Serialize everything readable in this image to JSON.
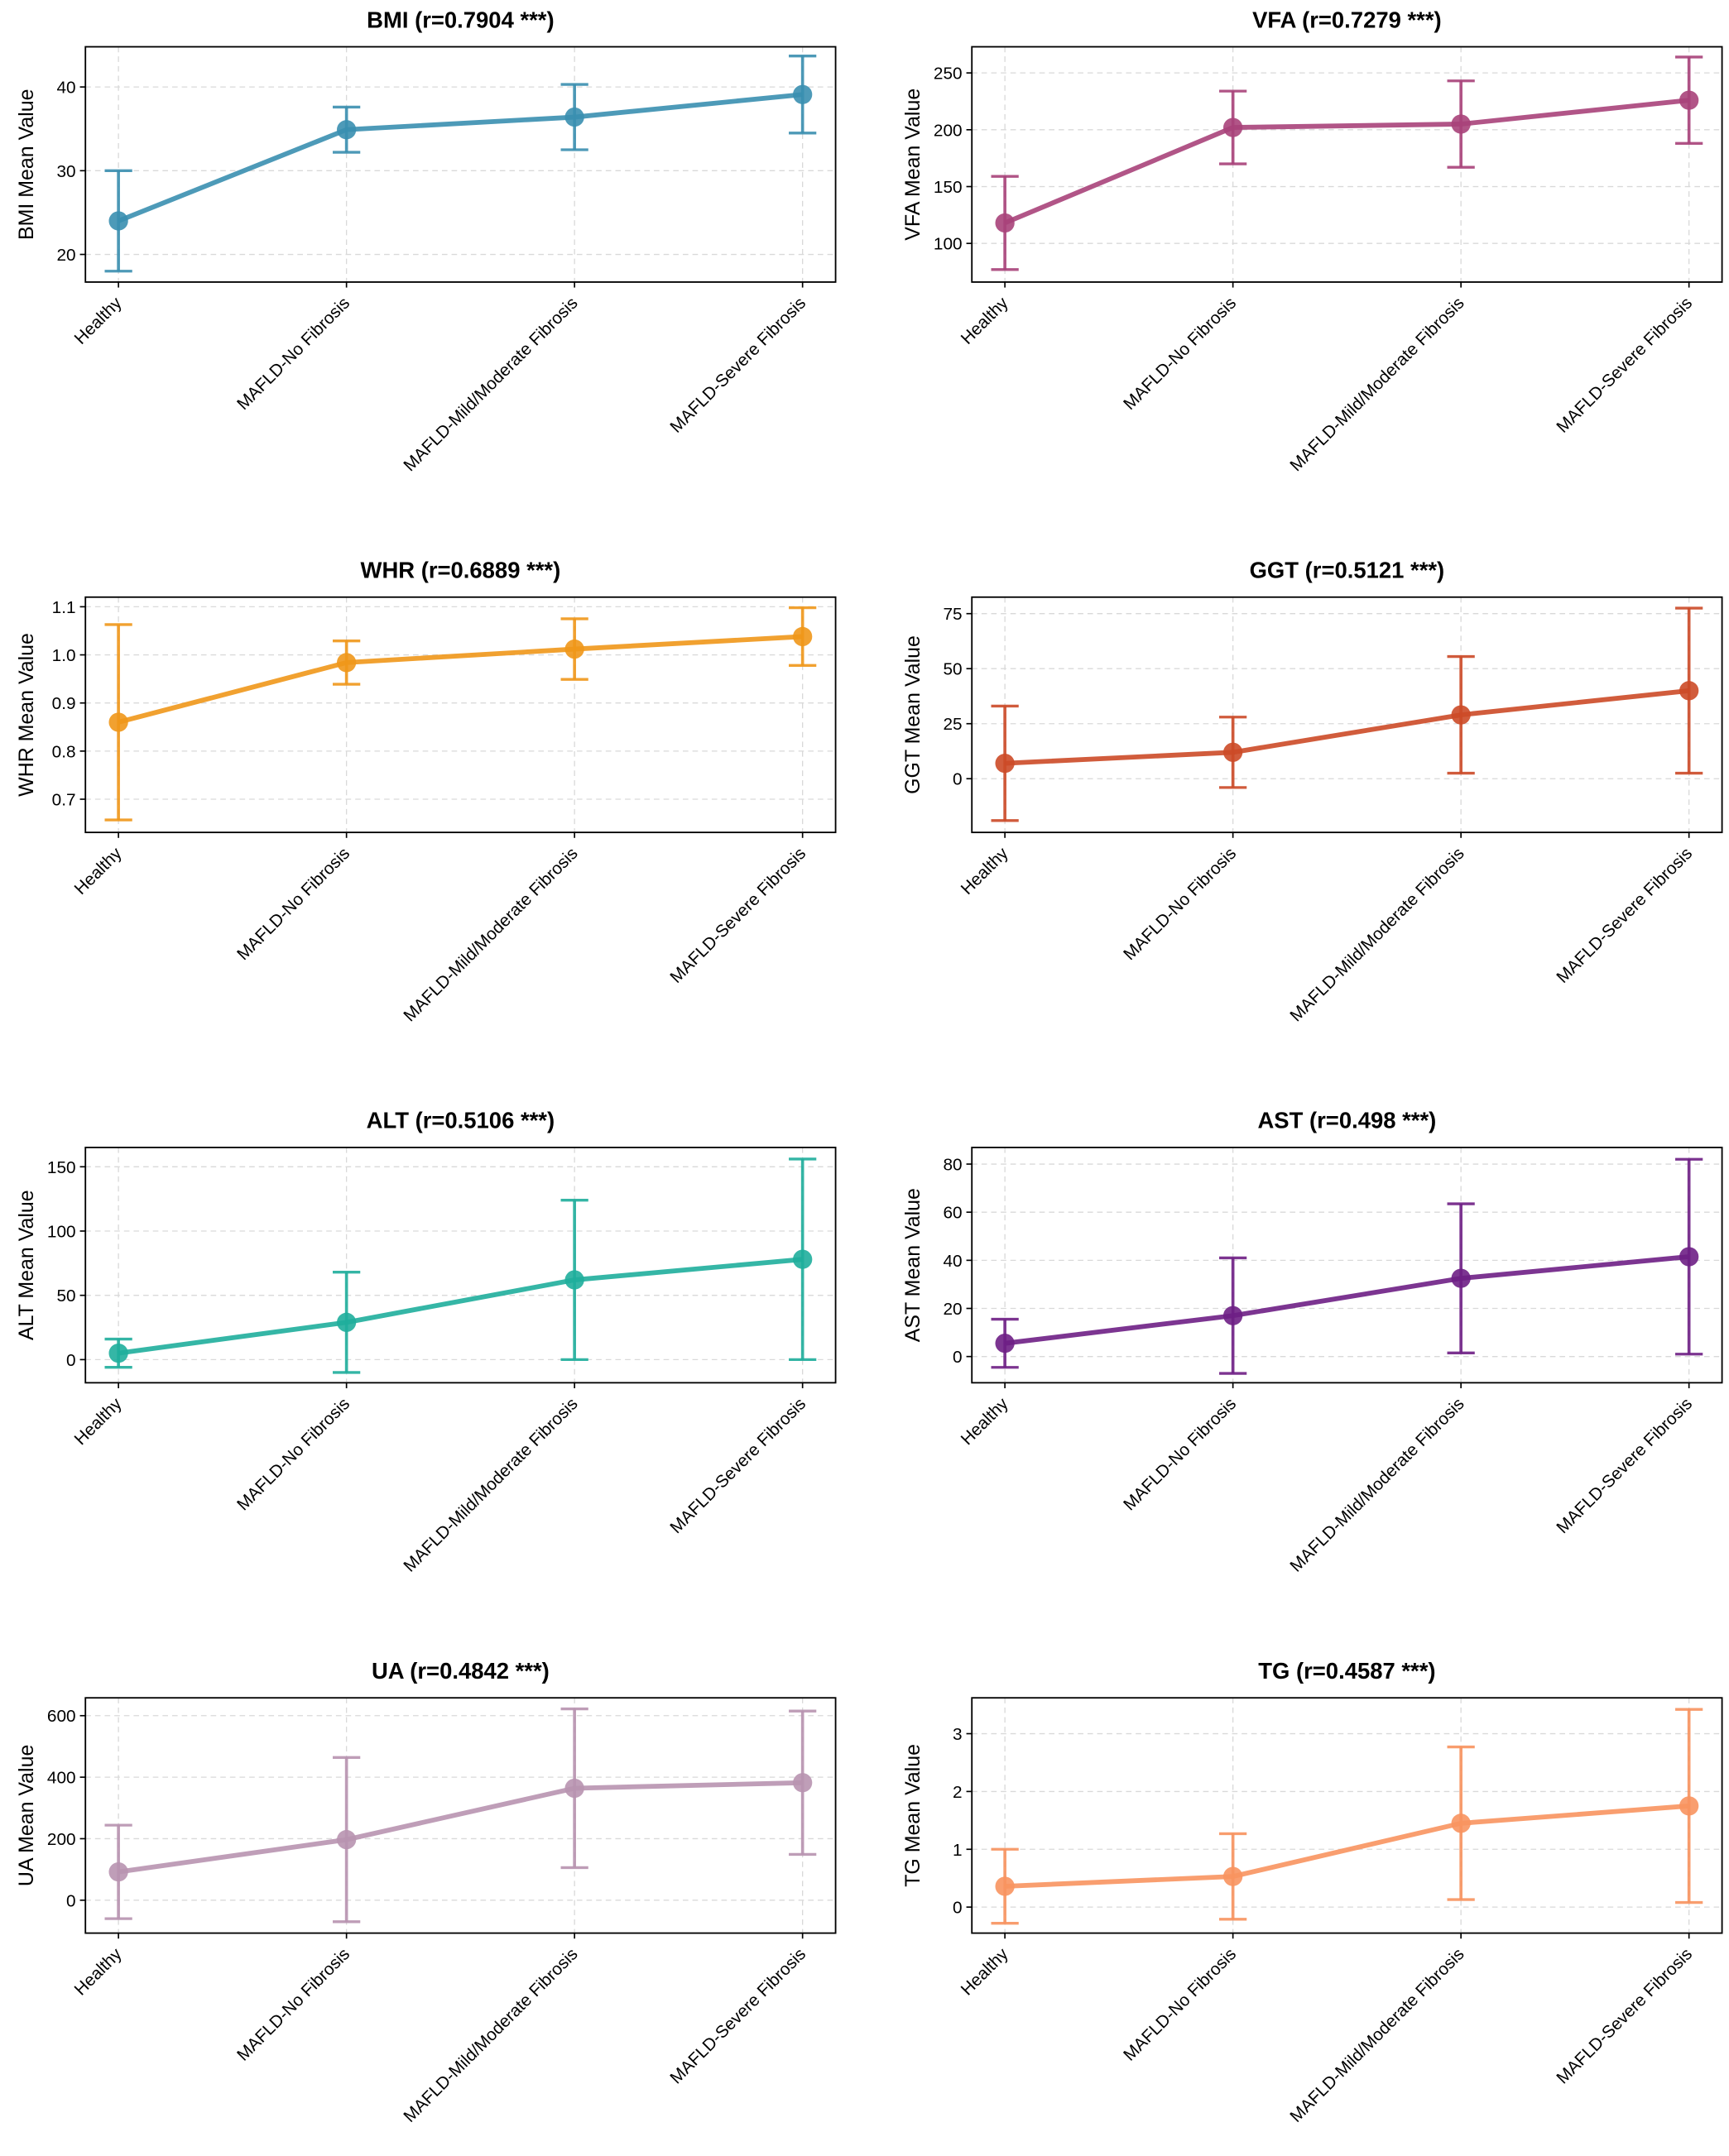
{
  "chart_data": [
    {
      "type": "line",
      "title": "BMI (r=0.7904 ***)",
      "ylabel": "BMI Mean Value",
      "color": "#3a8fb0",
      "categories": [
        "Healthy",
        "MAFLD-No Fibrosis",
        "MAFLD-Mild/Moderate Fibrosis",
        "MAFLD-Severe Fibrosis"
      ],
      "values": [
        24.0,
        34.9,
        36.4,
        39.1
      ],
      "errors": [
        6.0,
        2.7,
        3.9,
        4.6
      ],
      "ylim": [
        16.7,
        44.8
      ],
      "yticks": [
        20,
        30,
        40
      ],
      "grid": true
    },
    {
      "type": "line",
      "title": "VFA (r=0.7279 ***)",
      "ylabel": "VFA Mean Value",
      "color": "#a8427a",
      "categories": [
        "Healthy",
        "MAFLD-No Fibrosis",
        "MAFLD-Mild/Moderate Fibrosis",
        "MAFLD-Severe Fibrosis"
      ],
      "values": [
        118,
        202,
        205,
        226
      ],
      "errors": [
        41,
        32,
        38,
        38
      ],
      "ylim": [
        66,
        273
      ],
      "yticks": [
        100,
        150,
        200,
        250
      ],
      "grid": true
    },
    {
      "type": "line",
      "title": "WHR (r=0.6889 ***)",
      "ylabel": "WHR Mean Value",
      "color": "#f0971a",
      "categories": [
        "Healthy",
        "MAFLD-No Fibrosis",
        "MAFLD-Mild/Moderate Fibrosis",
        "MAFLD-Severe Fibrosis"
      ],
      "values": [
        0.86,
        0.984,
        1.012,
        1.038
      ],
      "errors": [
        0.203,
        0.045,
        0.063,
        0.06
      ],
      "ylim": [
        0.631,
        1.12
      ],
      "yticks": [
        0.7,
        0.8,
        0.9,
        1.0,
        1.1
      ],
      "grid": true
    },
    {
      "type": "line",
      "title": "GGT (r=0.5121 ***)",
      "ylabel": "GGT Mean Value",
      "color": "#cc4a27",
      "categories": [
        "Healthy",
        "MAFLD-No Fibrosis",
        "MAFLD-Mild/Moderate Fibrosis",
        "MAFLD-Severe Fibrosis"
      ],
      "values": [
        7,
        12,
        29,
        40
      ],
      "errors": [
        26,
        16,
        26.5,
        37.5
      ],
      "ylim": [
        -24.4,
        82.5
      ],
      "yticks": [
        0,
        25,
        50,
        75
      ],
      "grid": true
    },
    {
      "type": "line",
      "title": "ALT (r=0.5106 ***)",
      "ylabel": "ALT Mean Value",
      "color": "#1fae9c",
      "categories": [
        "Healthy",
        "MAFLD-No Fibrosis",
        "MAFLD-Mild/Moderate Fibrosis",
        "MAFLD-Severe Fibrosis"
      ],
      "values": [
        5,
        29,
        62,
        78
      ],
      "errors": [
        11,
        39,
        62,
        78
      ],
      "ylim": [
        -18,
        165
      ],
      "yticks": [
        0,
        50,
        100,
        150
      ],
      "grid": true
    },
    {
      "type": "line",
      "title": "AST (r=0.498 ***)",
      "ylabel": "AST Mean Value",
      "color": "#6e1f85",
      "categories": [
        "Healthy",
        "MAFLD-No Fibrosis",
        "MAFLD-Mild/Moderate Fibrosis",
        "MAFLD-Severe Fibrosis"
      ],
      "values": [
        5.5,
        17,
        32.5,
        41.5
      ],
      "errors": [
        10,
        24,
        31,
        40.5
      ],
      "ylim": [
        -10.9,
        86.9
      ],
      "yticks": [
        0,
        20,
        40,
        60,
        80
      ],
      "grid": true
    },
    {
      "type": "line",
      "title": "UA (r=0.4842 ***)",
      "ylabel": "UA Mean Value",
      "color": "#b893b0",
      "categories": [
        "Healthy",
        "MAFLD-No Fibrosis",
        "MAFLD-Mild/Moderate Fibrosis",
        "MAFLD-Severe Fibrosis"
      ],
      "values": [
        92,
        197,
        364,
        382
      ],
      "errors": [
        152,
        267,
        258,
        233
      ],
      "ylim": [
        -107,
        658
      ],
      "yticks": [
        0,
        200,
        400,
        600
      ],
      "grid": true
    },
    {
      "type": "line",
      "title": "TG (r=0.4587 ***)",
      "ylabel": "TG Mean Value",
      "color": "#f8935f",
      "categories": [
        "Healthy",
        "MAFLD-No Fibrosis",
        "MAFLD-Mild/Moderate Fibrosis",
        "MAFLD-Severe Fibrosis"
      ],
      "values": [
        0.36,
        0.53,
        1.45,
        1.75
      ],
      "errors": [
        0.64,
        0.74,
        1.32,
        1.67
      ],
      "ylim": [
        -0.45,
        3.62
      ],
      "yticks": [
        0,
        1,
        2,
        3
      ],
      "grid": true
    }
  ]
}
